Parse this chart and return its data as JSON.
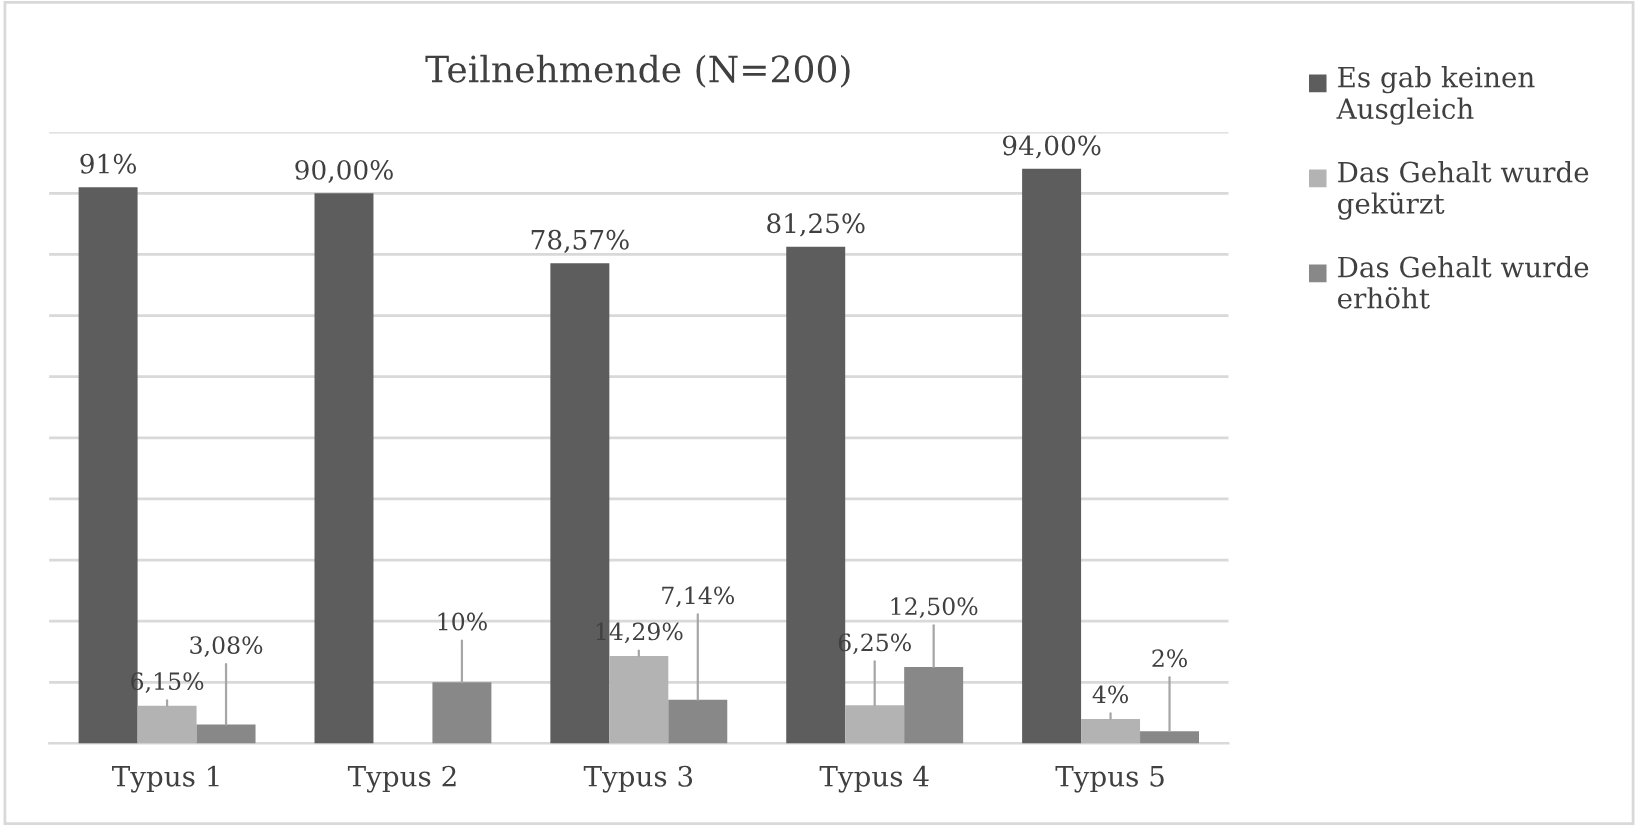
{
  "chart_data": {
    "type": "bar",
    "title": "Teilnehmende (N=200)",
    "categories": [
      "Typus 1",
      "Typus 2",
      "Typus 3",
      "Typus 4",
      "Typus 5"
    ],
    "series": [
      {
        "name": "Es gab keinen Ausgleich",
        "color": "#5d5d5d",
        "values": [
          91,
          90,
          78.57,
          81.25,
          94
        ],
        "value_labels": [
          "91%",
          "90,00%",
          "78,57%",
          "81,25%",
          "94,00%"
        ]
      },
      {
        "name": "Das Gehalt wurde gekürzt",
        "color": "#b3b3b3",
        "values": [
          6.15,
          null,
          14.29,
          6.25,
          4
        ],
        "value_labels": [
          "6,15%",
          null,
          "14,29%",
          "6,25%",
          "4%"
        ]
      },
      {
        "name": "Das Gehalt wurde erhöht",
        "color": "#888888",
        "values": [
          3.08,
          10,
          7.14,
          12.5,
          2
        ],
        "value_labels": [
          "3,08%",
          "10%",
          "7,14%",
          "12,50%",
          "2%"
        ]
      }
    ],
    "ylim": [
      0,
      100
    ],
    "yticks": [
      {
        "value": 0,
        "label": null
      },
      {
        "value": 10,
        "label": null
      },
      {
        "value": 20,
        "label": null
      },
      {
        "value": 30,
        "label": null
      },
      {
        "value": 40,
        "label": null
      },
      {
        "value": 50,
        "label": null
      },
      {
        "value": 60,
        "label": null
      },
      {
        "value": 70,
        "label": null
      },
      {
        "value": 80,
        "label": null
      },
      {
        "value": 90,
        "label": null
      },
      {
        "value": 100,
        "label": null
      }
    ],
    "tick_labels": "x",
    "grid": "y",
    "legend": "right"
  }
}
